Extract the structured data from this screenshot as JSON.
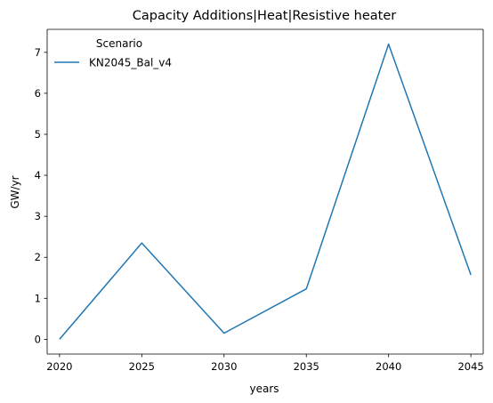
{
  "chart_data": {
    "type": "line",
    "title": "Capacity Additions|Heat|Resistive heater",
    "xlabel": "years",
    "ylabel": "GW/yr",
    "x": [
      2020,
      2025,
      2030,
      2035,
      2040,
      2045
    ],
    "xticks": [
      "2020",
      "2025",
      "2030",
      "2035",
      "2040",
      "2045"
    ],
    "yticks": [
      "0",
      "1",
      "2",
      "3",
      "4",
      "5",
      "6",
      "7"
    ],
    "xlim": [
      2019.25,
      2045.75
    ],
    "ylim": [
      -0.36,
      7.56
    ],
    "grid": false,
    "legend": {
      "title": "Scenario",
      "placement": "top-left"
    },
    "series": [
      {
        "name": "KN2045_Bal_v4",
        "color": "#1f77b4",
        "values": [
          0.0,
          2.35,
          0.15,
          1.23,
          7.2,
          1.57
        ]
      }
    ]
  }
}
